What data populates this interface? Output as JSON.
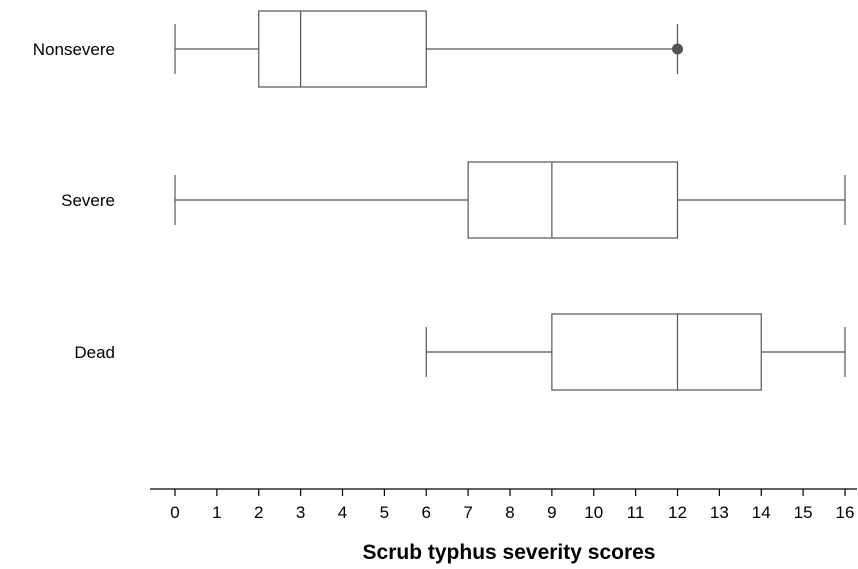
{
  "chart_data": {
    "type": "boxplot",
    "orientation": "horizontal",
    "title": "",
    "xlabel": "Scrub typhus severity scores",
    "ylabel": "",
    "xlim": [
      0,
      16
    ],
    "x_ticks": [
      "0",
      "1",
      "2",
      "3",
      "4",
      "5",
      "6",
      "7",
      "8",
      "9",
      "10",
      "11",
      "12",
      "13",
      "14",
      "15",
      "16"
    ],
    "grid": false,
    "series": [
      {
        "name": "Nonsevere",
        "min": 0,
        "q1": 2,
        "median": 3,
        "q3": 6,
        "max": 12,
        "outliers": [
          12
        ]
      },
      {
        "name": "Severe",
        "min": 0,
        "q1": 7,
        "median": 9,
        "q3": 12,
        "max": 16,
        "outliers": []
      },
      {
        "name": "Dead",
        "min": 6,
        "q1": 9,
        "median": 12,
        "q3": 14,
        "max": 16,
        "outliers": []
      }
    ],
    "colors": {
      "stroke": "#555555",
      "outlier": "#555555",
      "axis": "#000000"
    }
  }
}
